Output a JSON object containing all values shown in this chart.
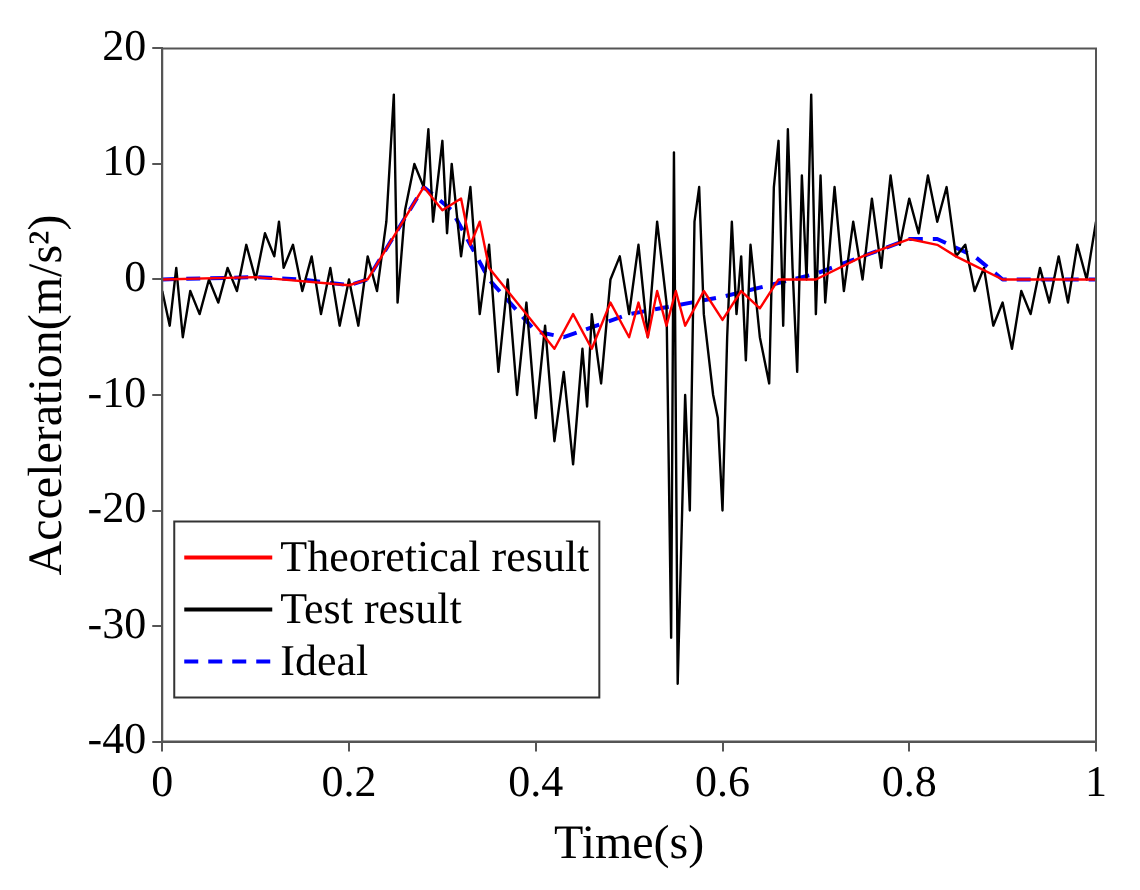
{
  "chart_data": {
    "type": "line",
    "xlabel": "Time(s)",
    "ylabel": "Acceleration(m/s²)",
    "xlim": [
      0,
      1
    ],
    "xticks": [
      0,
      0.2,
      0.4,
      0.6,
      0.8,
      1
    ],
    "ylim": [
      -40,
      20
    ],
    "yticks": [
      -40,
      -30,
      -20,
      -10,
      0,
      10,
      20
    ],
    "grid": false,
    "legend": "bottom left",
    "marker": "none",
    "series": [
      {
        "name": "Theoretical result",
        "color": "#ff0000",
        "line_style": "solid",
        "x": [
          0,
          0.1,
          0.2,
          0.22,
          0.25,
          0.28,
          0.3,
          0.32,
          0.33,
          0.34,
          0.35,
          0.4,
          0.42,
          0.44,
          0.46,
          0.48,
          0.5,
          0.51,
          0.52,
          0.53,
          0.54,
          0.55,
          0.56,
          0.58,
          0.6,
          0.62,
          0.64,
          0.66,
          0.7,
          0.75,
          0.8,
          0.83,
          0.85,
          0.9,
          1
        ],
        "values": [
          0,
          0.2,
          -0.5,
          0,
          4,
          8,
          6,
          7,
          3,
          5,
          1,
          -4,
          -6,
          -3,
          -6,
          -2,
          -5,
          -2,
          -5,
          -1,
          -4,
          -1,
          -4,
          -1,
          -3.5,
          -1,
          -2.5,
          0,
          0,
          2,
          3.5,
          3,
          2,
          0,
          0
        ]
      },
      {
        "name": "Test result",
        "color": "#000000",
        "line_style": "solid",
        "x": [
          0,
          0.008,
          0.015,
          0.022,
          0.03,
          0.04,
          0.05,
          0.06,
          0.07,
          0.08,
          0.09,
          0.1,
          0.11,
          0.12,
          0.125,
          0.13,
          0.14,
          0.15,
          0.16,
          0.17,
          0.18,
          0.19,
          0.2,
          0.21,
          0.22,
          0.23,
          0.24,
          0.248,
          0.252,
          0.26,
          0.27,
          0.28,
          0.285,
          0.29,
          0.3,
          0.305,
          0.31,
          0.32,
          0.33,
          0.34,
          0.35,
          0.36,
          0.37,
          0.38,
          0.39,
          0.4,
          0.41,
          0.42,
          0.43,
          0.44,
          0.45,
          0.455,
          0.46,
          0.47,
          0.48,
          0.49,
          0.5,
          0.51,
          0.52,
          0.53,
          0.54,
          0.545,
          0.548,
          0.552,
          0.56,
          0.565,
          0.57,
          0.575,
          0.58,
          0.59,
          0.595,
          0.6,
          0.605,
          0.61,
          0.615,
          0.62,
          0.625,
          0.63,
          0.64,
          0.65,
          0.655,
          0.66,
          0.665,
          0.67,
          0.675,
          0.68,
          0.685,
          0.69,
          0.695,
          0.7,
          0.705,
          0.71,
          0.72,
          0.73,
          0.74,
          0.75,
          0.76,
          0.77,
          0.78,
          0.79,
          0.8,
          0.81,
          0.82,
          0.83,
          0.84,
          0.85,
          0.86,
          0.87,
          0.88,
          0.89,
          0.9,
          0.91,
          0.92,
          0.93,
          0.94,
          0.95,
          0.96,
          0.97,
          0.98,
          0.99,
          1
        ],
        "values": [
          -1,
          -4,
          1,
          -5,
          -1,
          -3,
          0,
          -2,
          1,
          -1,
          3,
          0,
          4,
          2,
          5,
          1,
          3,
          -1,
          2,
          -3,
          1,
          -4,
          0,
          -4,
          2,
          -1,
          5,
          16,
          -2,
          6,
          10,
          8,
          13,
          5,
          12,
          4,
          10,
          2,
          8,
          -3,
          3,
          -8,
          0,
          -10,
          -2,
          -12,
          -4,
          -14,
          -8,
          -16,
          -6,
          -11,
          -3,
          -9,
          0,
          2,
          -3,
          3,
          -5,
          5,
          -2,
          -31,
          11,
          -35,
          -10,
          -20,
          5,
          8,
          -3,
          -10,
          -12,
          -20,
          -5,
          5,
          -3,
          2,
          -7,
          3,
          -5,
          -9,
          8,
          12,
          -4,
          13,
          1,
          -8,
          9,
          0,
          16,
          -3,
          9,
          -2,
          8,
          -1,
          5,
          0,
          7,
          1,
          9,
          3,
          7,
          4,
          9,
          5,
          8,
          2,
          3,
          -1,
          1,
          -4,
          -2,
          -6,
          -1,
          -3,
          1,
          -2,
          2,
          -2,
          3,
          0,
          5
        ]
      },
      {
        "name": "Ideal",
        "color": "#0000ff",
        "line_style": "dashed",
        "x": [
          0,
          0.1,
          0.15,
          0.2,
          0.22,
          0.25,
          0.28,
          0.31,
          0.35,
          0.4,
          0.43,
          0.5,
          0.6,
          0.7,
          0.75,
          0.8,
          0.83,
          0.87,
          0.9,
          0.95,
          1
        ],
        "values": [
          0,
          0.2,
          0,
          -0.5,
          0,
          4,
          8,
          6,
          0,
          -4.5,
          -5,
          -3,
          -1.5,
          0.5,
          2,
          3.5,
          3.5,
          2,
          0,
          0,
          0
        ]
      }
    ]
  }
}
